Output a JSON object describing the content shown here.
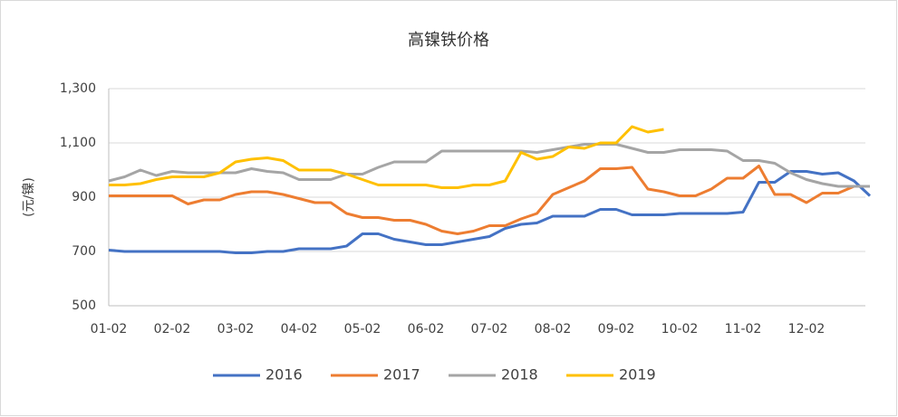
{
  "chart_data": {
    "type": "line",
    "title": "高镍铁价格",
    "y_label": "(元/镍)",
    "categories": [
      "01-02",
      null,
      null,
      null,
      "02-02",
      null,
      null,
      null,
      "03-02",
      null,
      null,
      null,
      "04-02",
      null,
      null,
      null,
      "05-02",
      null,
      null,
      null,
      "06-02",
      null,
      null,
      null,
      "07-02",
      null,
      null,
      null,
      "08-02",
      null,
      null,
      null,
      "09-02",
      null,
      null,
      null,
      "10-02",
      null,
      null,
      null,
      "11-02",
      null,
      null,
      null,
      "12-02",
      null,
      null,
      null,
      null
    ],
    "series": [
      {
        "name": "2016",
        "color": "#4472c4",
        "values": [
          705,
          700,
          700,
          700,
          700,
          700,
          700,
          700,
          695,
          695,
          700,
          700,
          710,
          710,
          710,
          720,
          765,
          765,
          745,
          735,
          725,
          725,
          735,
          745,
          755,
          785,
          800,
          805,
          830,
          830,
          830,
          855,
          855,
          835,
          835,
          835,
          840,
          840,
          840,
          840,
          845,
          955,
          955,
          995,
          995,
          985,
          990,
          960,
          905
        ]
      },
      {
        "name": "2017",
        "color": "#ed7d31",
        "values": [
          905,
          905,
          905,
          905,
          905,
          875,
          890,
          890,
          910,
          920,
          920,
          910,
          895,
          880,
          880,
          840,
          825,
          825,
          815,
          815,
          800,
          775,
          765,
          775,
          795,
          795,
          820,
          840,
          910,
          935,
          960,
          1005,
          1005,
          1010,
          930,
          920,
          905,
          905,
          930,
          970,
          970,
          1015,
          910,
          910,
          880,
          915,
          915,
          940,
          940
        ]
      },
      {
        "name": "2018",
        "color": "#a5a5a5",
        "values": [
          960,
          975,
          1000,
          980,
          995,
          990,
          990,
          990,
          990,
          1005,
          995,
          990,
          965,
          965,
          965,
          985,
          985,
          1010,
          1030,
          1030,
          1030,
          1070,
          1070,
          1070,
          1070,
          1070,
          1070,
          1065,
          1075,
          1085,
          1095,
          1095,
          1095,
          1080,
          1065,
          1065,
          1075,
          1075,
          1075,
          1070,
          1035,
          1035,
          1025,
          990,
          965,
          950,
          940,
          940,
          940
        ]
      },
      {
        "name": "2019",
        "color": "#ffc000",
        "values": [
          945,
          945,
          950,
          965,
          975,
          975,
          975,
          990,
          1030,
          1040,
          1045,
          1035,
          1000,
          1000,
          1000,
          985,
          965,
          945,
          945,
          945,
          945,
          935,
          935,
          945,
          945,
          960,
          1065,
          1040,
          1050,
          1085,
          1080,
          1100,
          1100,
          1160,
          1140,
          1150,
          null,
          null,
          null,
          null,
          null,
          null,
          null,
          null,
          null,
          null,
          null,
          null,
          null
        ]
      }
    ],
    "ylim": [
      500,
      1300
    ],
    "yticks": [
      500,
      700,
      900,
      {
        "value": 1100,
        "label": "1,100"
      },
      {
        "value": 1300,
        "label": "1,300"
      }
    ],
    "grid": true,
    "legend": "bottom"
  }
}
